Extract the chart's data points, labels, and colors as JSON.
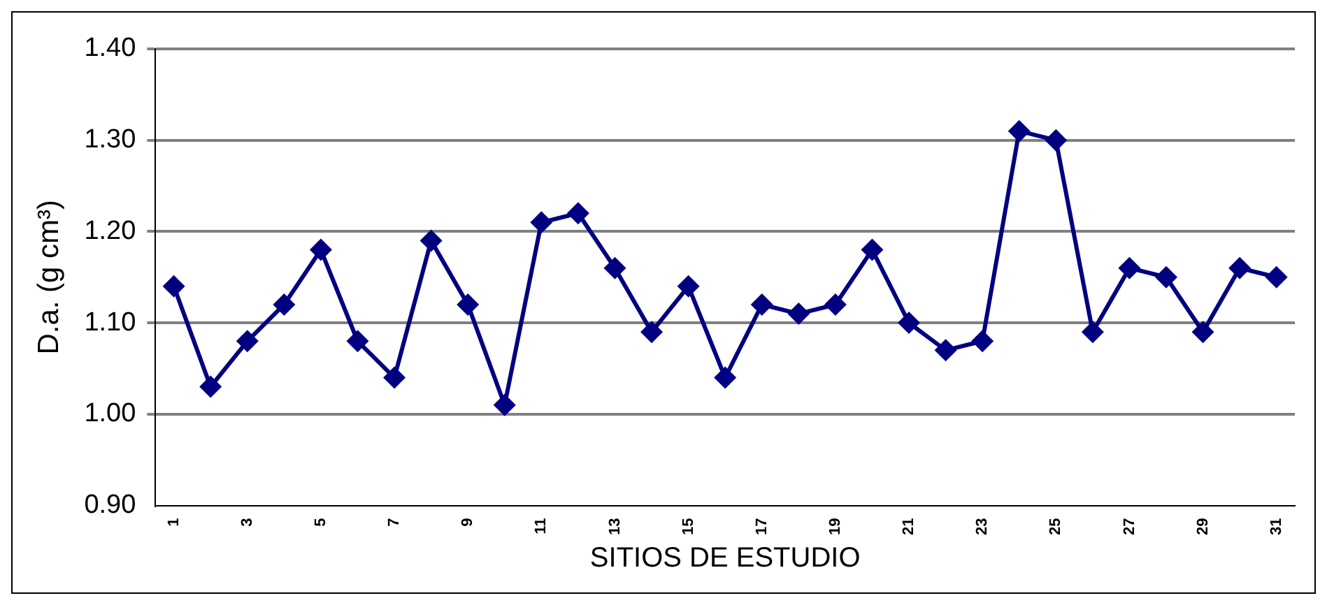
{
  "chart_data": {
    "type": "line",
    "xlabel": "SITIOS DE ESTUDIO",
    "ylabel": "D.a. (g cm³)",
    "categories": [
      "1",
      null,
      "3",
      null,
      "5",
      null,
      "7",
      null,
      "9",
      null,
      "11",
      null,
      "13",
      null,
      "15",
      null,
      "17",
      null,
      "19",
      null,
      "21",
      null,
      "23",
      null,
      "25",
      null,
      "27",
      null,
      "29",
      null,
      "31"
    ],
    "series": [
      {
        "color": "#000080",
        "values": [
          1.14,
          1.03,
          1.08,
          1.12,
          1.18,
          1.08,
          1.04,
          1.19,
          1.12,
          1.01,
          1.21,
          1.22,
          1.16,
          1.09,
          1.14,
          1.04,
          1.12,
          1.11,
          1.12,
          1.18,
          1.1,
          1.07,
          1.08,
          1.31,
          1.3,
          1.09,
          1.16,
          1.15,
          1.09,
          1.16,
          1.15
        ]
      }
    ],
    "ylim": [
      0.9,
      1.4
    ],
    "yticks": [
      {
        "value": 0.9,
        "label": "0.90"
      },
      {
        "value": 1.0,
        "label": "1.00"
      },
      {
        "value": 1.1,
        "label": "1.10"
      },
      {
        "value": 1.2,
        "label": "1.20"
      },
      {
        "value": 1.3,
        "label": "1.30"
      },
      {
        "value": 1.4,
        "label": "1.40"
      }
    ],
    "grid": "y",
    "legend": false,
    "marker": "diamond",
    "line_style": "solid"
  }
}
